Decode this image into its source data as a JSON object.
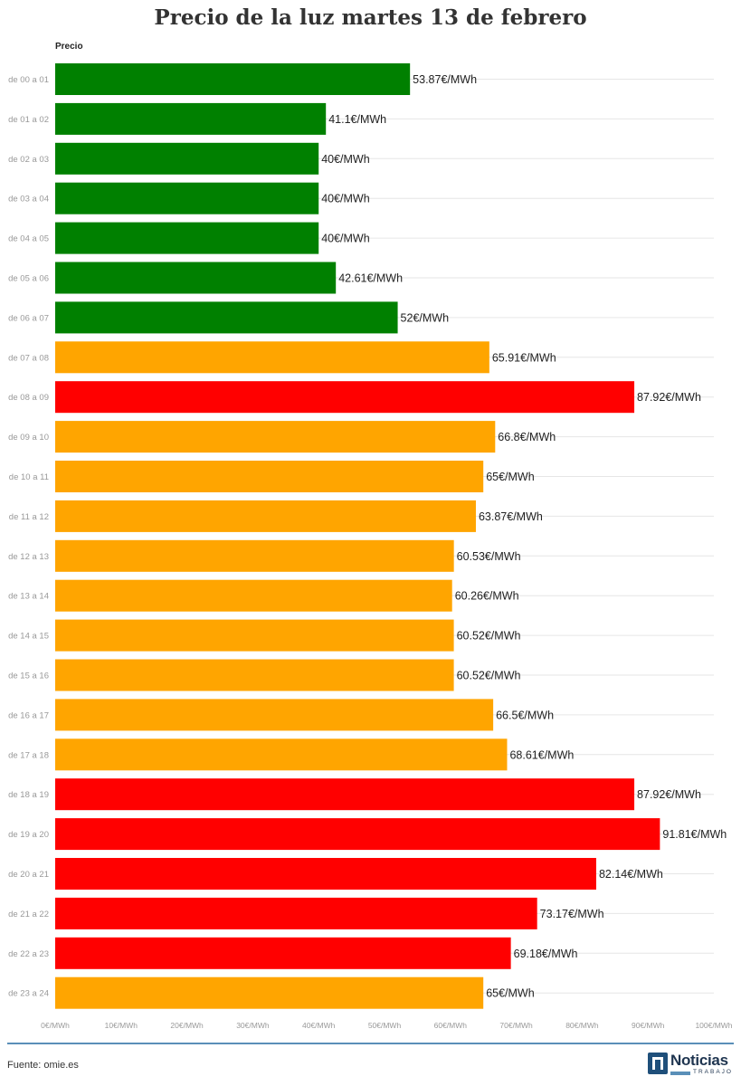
{
  "chart_data": {
    "type": "bar",
    "orientation": "horizontal",
    "title": "Precio de la luz martes 13 de febrero",
    "series_name": "Precio",
    "categories": [
      "de 00 a 01",
      "de 01 a 02",
      "de 02 a 03",
      "de 03 a 04",
      "de 04 a 05",
      "de 05 a 06",
      "de 06 a 07",
      "de 07 a 08",
      "de 08 a 09",
      "de 09 a 10",
      "de 10 a 11",
      "de 11 a 12",
      "de 12 a 13",
      "de 13 a 14",
      "de 14 a 15",
      "de 15 a 16",
      "de 16 a 17",
      "de 17 a 18",
      "de 18 a 19",
      "de 19 a 20",
      "de 20 a 21",
      "de 21 a 22",
      "de 22 a 23",
      "de 23 a 24"
    ],
    "values": [
      53.87,
      41.1,
      40,
      40,
      40,
      42.61,
      52,
      65.91,
      87.92,
      66.8,
      65,
      63.87,
      60.53,
      60.26,
      60.52,
      60.52,
      66.5,
      68.61,
      87.92,
      91.81,
      82.14,
      73.17,
      69.18,
      65
    ],
    "value_labels": [
      "53.87€/MWh",
      "41.1€/MWh",
      "40€/MWh",
      "40€/MWh",
      "40€/MWh",
      "42.61€/MWh",
      "52€/MWh",
      "65.91€/MWh",
      "87.92€/MWh",
      "66.8€/MWh",
      "65€/MWh",
      "63.87€/MWh",
      "60.53€/MWh",
      "60.26€/MWh",
      "60.52€/MWh",
      "60.52€/MWh",
      "66.5€/MWh",
      "68.61€/MWh",
      "87.92€/MWh",
      "91.81€/MWh",
      "82.14€/MWh",
      "73.17€/MWh",
      "69.18€/MWh",
      "65€/MWh"
    ],
    "bar_colors": [
      "#008000",
      "#008000",
      "#008000",
      "#008000",
      "#008000",
      "#008000",
      "#008000",
      "#FFA500",
      "#FF0000",
      "#FFA500",
      "#FFA500",
      "#FFA500",
      "#FFA500",
      "#FFA500",
      "#FFA500",
      "#FFA500",
      "#FFA500",
      "#FFA500",
      "#FF0000",
      "#FF0000",
      "#FF0000",
      "#FF0000",
      "#FF0000",
      "#FFA500"
    ],
    "xlim": [
      0,
      100
    ],
    "x_ticks": [
      0,
      10,
      20,
      30,
      40,
      50,
      60,
      70,
      80,
      90,
      100
    ],
    "x_tick_labels": [
      "0€/MWh",
      "10€/MWh",
      "20€/MWh",
      "30€/MWh",
      "40€/MWh",
      "50€/MWh",
      "60€/MWh",
      "70€/MWh",
      "80€/MWh",
      "90€/MWh",
      "100€/MWh"
    ],
    "grid": true
  },
  "footer": {
    "source": "Fuente: omie.es",
    "logo_name": "Noticias",
    "logo_sub": "TRABAJO"
  }
}
